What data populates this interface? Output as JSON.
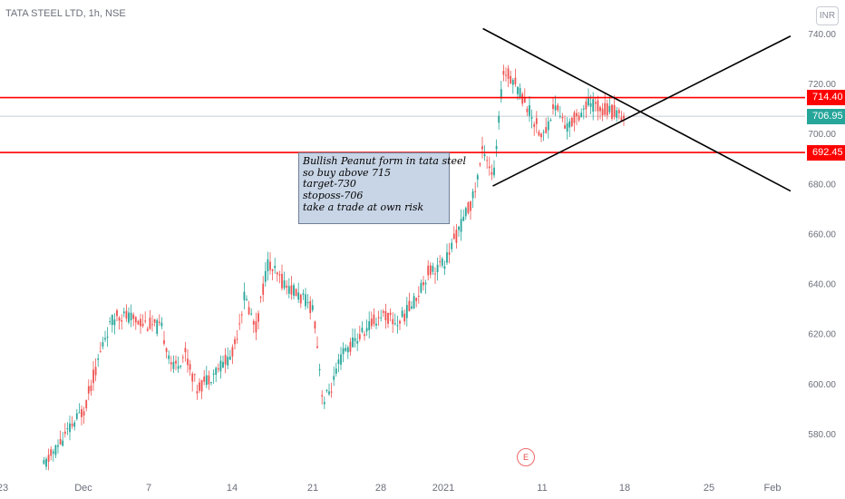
{
  "header": {
    "symbol": "TATA STEEL LTD, 1h, NSE",
    "currency": "INR"
  },
  "annotation": {
    "lines": [
      "Bullish Peanut form in tata steel",
      "so buy above 715",
      "target-730",
      "stoposs-706",
      "take a trade at own risk"
    ]
  },
  "event_marker": {
    "label": "E"
  },
  "colors": {
    "up": "#26a69a",
    "down": "#ef5350",
    "level_line": "#ff0000",
    "trend_line": "#000000",
    "current_price": "#26a69a",
    "level_tag": "#ff0000",
    "note_fill": "#c8d5e6"
  },
  "chart_data": {
    "type": "candlestick",
    "title": "TATA STEEL LTD, 1h, NSE",
    "ylim": [
      566,
      745
    ],
    "y_ticks": [
      "740.00",
      "720.00",
      "700.00",
      "680.00",
      "660.00",
      "640.00",
      "620.00",
      "600.00",
      "580.00"
    ],
    "x_ticks": [
      "23",
      "Dec",
      "7",
      "14",
      "21",
      "28",
      "2021",
      "11",
      "18",
      "25",
      "Feb"
    ],
    "horizontal_levels": [
      {
        "label": "714.40",
        "value": 714.4
      },
      {
        "label": "692.45",
        "value": 692.45
      }
    ],
    "current_price": {
      "label": "706.95",
      "value": 706.95
    },
    "price_path": [
      {
        "date": "2020-11-27",
        "close": 567
      },
      {
        "date": "2020-12-01",
        "close": 590
      },
      {
        "date": "2020-12-03",
        "close": 620
      },
      {
        "date": "2020-12-04",
        "close": 628
      },
      {
        "date": "2020-12-08",
        "close": 622
      },
      {
        "date": "2020-12-09",
        "close": 606
      },
      {
        "date": "2020-12-10",
        "close": 612
      },
      {
        "date": "2020-12-11",
        "close": 598
      },
      {
        "date": "2020-12-14",
        "close": 612
      },
      {
        "date": "2020-12-15",
        "close": 635
      },
      {
        "date": "2020-12-16",
        "close": 622
      },
      {
        "date": "2020-12-17",
        "close": 648
      },
      {
        "date": "2020-12-18",
        "close": 642
      },
      {
        "date": "2020-12-21",
        "close": 630
      },
      {
        "date": "2020-12-22",
        "close": 592
      },
      {
        "date": "2020-12-23",
        "close": 600
      },
      {
        "date": "2020-12-24",
        "close": 612
      },
      {
        "date": "2020-12-28",
        "close": 628
      },
      {
        "date": "2020-12-29",
        "close": 624
      },
      {
        "date": "2020-12-30",
        "close": 632
      },
      {
        "date": "2020-12-31",
        "close": 645
      },
      {
        "date": "2021-01-01",
        "close": 648
      },
      {
        "date": "2021-01-04",
        "close": 675
      },
      {
        "date": "2021-01-05",
        "close": 695
      },
      {
        "date": "2021-01-06",
        "close": 682
      },
      {
        "date": "2021-01-07",
        "close": 725
      },
      {
        "date": "2021-01-08",
        "close": 722
      },
      {
        "date": "2021-01-11",
        "close": 698
      },
      {
        "date": "2021-01-12",
        "close": 712
      },
      {
        "date": "2021-01-13",
        "close": 702
      },
      {
        "date": "2021-01-14",
        "close": 708
      },
      {
        "date": "2021-01-15",
        "close": 712
      },
      {
        "date": "2021-01-18",
        "close": 706.95
      }
    ],
    "trend_lines": [
      {
        "name": "descending",
        "from": {
          "date": "2021-01-05",
          "price": 742
        },
        "to": {
          "date": "2021-02-03",
          "price": 677
        }
      },
      {
        "name": "ascending",
        "from": {
          "date": "2021-01-06",
          "price": 679
        },
        "to": {
          "date": "2021-02-03",
          "price": 739
        }
      }
    ]
  }
}
